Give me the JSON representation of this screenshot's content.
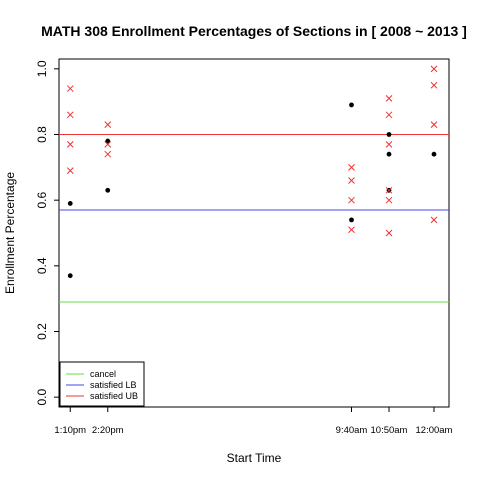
{
  "chart_data": {
    "type": "scatter",
    "title": "MATH 308 Enrollment Percentages of Sections in [ 2008 ~ 2013 ]",
    "xlabel": "Start Time",
    "ylabel": "Enrollment Percentage",
    "ylim": [
      0,
      1.03
    ],
    "yticks": [
      "0.0",
      "0.2",
      "0.4",
      "0.6",
      "0.8",
      "1.0"
    ],
    "ytick_values": [
      0.0,
      0.2,
      0.4,
      0.6,
      0.8,
      1.0
    ],
    "categories": [
      "1:10pm",
      "2:20pm",
      "9:40am",
      "10:50am",
      "12:00am"
    ],
    "category_positions": [
      0,
      1,
      7.5,
      8.5,
      9.7
    ],
    "xlim": [
      -0.3,
      10.1
    ],
    "grid": false,
    "legend_position": "bottom-left",
    "hlines": [
      {
        "name": "cancel",
        "value": 0.29,
        "color": "#66dd44"
      },
      {
        "name": "satisfied LB",
        "value": 0.57,
        "color": "#4444ee"
      },
      {
        "name": "satisfied UB",
        "value": 0.8,
        "color": "#ee3333"
      }
    ],
    "series": [
      {
        "marker": "dot",
        "color": "#000000",
        "points": [
          {
            "cat": 0,
            "y": 0.59
          },
          {
            "cat": 0,
            "y": 0.37
          },
          {
            "cat": 1,
            "y": 0.78
          },
          {
            "cat": 1,
            "y": 0.63
          },
          {
            "cat": 2,
            "y": 0.89
          },
          {
            "cat": 2,
            "y": 0.54
          },
          {
            "cat": 3,
            "y": 0.8
          },
          {
            "cat": 3,
            "y": 0.74
          },
          {
            "cat": 3,
            "y": 0.63
          },
          {
            "cat": 4,
            "y": 0.74
          }
        ]
      },
      {
        "marker": "cross",
        "color": "#ee3333",
        "points": [
          {
            "cat": 0,
            "y": 0.94
          },
          {
            "cat": 0,
            "y": 0.86
          },
          {
            "cat": 0,
            "y": 0.77
          },
          {
            "cat": 0,
            "y": 0.69
          },
          {
            "cat": 1,
            "y": 0.83
          },
          {
            "cat": 1,
            "y": 0.77
          },
          {
            "cat": 1,
            "y": 0.74
          },
          {
            "cat": 2,
            "y": 0.7
          },
          {
            "cat": 2,
            "y": 0.66
          },
          {
            "cat": 2,
            "y": 0.6
          },
          {
            "cat": 2,
            "y": 0.51
          },
          {
            "cat": 3,
            "y": 0.91
          },
          {
            "cat": 3,
            "y": 0.86
          },
          {
            "cat": 3,
            "y": 0.77
          },
          {
            "cat": 3,
            "y": 0.63
          },
          {
            "cat": 3,
            "y": 0.6
          },
          {
            "cat": 3,
            "y": 0.5
          },
          {
            "cat": 4,
            "y": 1.0
          },
          {
            "cat": 4,
            "y": 0.95
          },
          {
            "cat": 4,
            "y": 0.83
          },
          {
            "cat": 4,
            "y": 0.54
          }
        ]
      }
    ]
  }
}
